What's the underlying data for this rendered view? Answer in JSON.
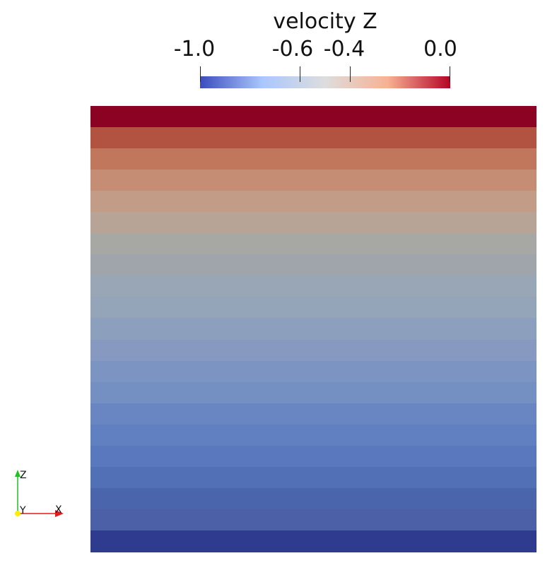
{
  "colorbar": {
    "title": "velocity Z",
    "ticks": [
      {
        "label": "-1.0",
        "value": -1.0
      },
      {
        "label": "-0.6",
        "value": -0.6
      },
      {
        "label": "-0.4",
        "value": -0.4
      },
      {
        "label": "0.0",
        "value": 0.0
      }
    ],
    "range": [
      -1.0,
      0.0
    ],
    "colormap": "cool-to-warm",
    "color_stops": [
      "#3b4cc0",
      "#aac7fd",
      "#dddddd",
      "#f7b194",
      "#b40426"
    ]
  },
  "field": {
    "band_colors": [
      "#8b0223",
      "#b25240",
      "#c0775c",
      "#c58d73",
      "#c29c86",
      "#b7a497",
      "#a7a7a4",
      "#a0a5ab",
      "#98a6b5",
      "#94a4b9",
      "#8c9fbd",
      "#8799c0",
      "#7c94c2",
      "#7490c3",
      "#6986c2",
      "#6180c2",
      "#5a78bd",
      "#5270b5",
      "#4b65ad",
      "#4b60a6",
      "#2f3b8f"
    ]
  },
  "orientation_axes": {
    "x_label": "X",
    "y_label": "Y",
    "z_label": "Z",
    "x_color": "#e41a1c",
    "y_color": "#ffee00",
    "z_color": "#20c020"
  }
}
